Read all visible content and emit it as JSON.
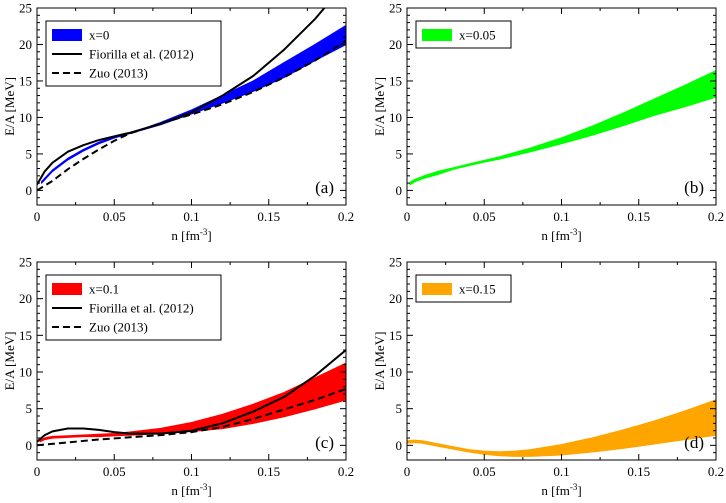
{
  "chart_data": [
    {
      "type": "area",
      "panel_label": "(a)",
      "xlabel": "n [fm",
      "xlabel_sup": "-3",
      "xlabel_end": "]",
      "ylabel": "E/A [MeV]",
      "xlim": [
        0,
        0.2
      ],
      "ylim": [
        -2,
        25
      ],
      "xticks": [
        "0",
        "0.05",
        "0.1",
        "0.15",
        "0.2"
      ],
      "yticks": [
        "0",
        "5",
        "10",
        "15",
        "20",
        "25"
      ],
      "xtick_values": [
        0,
        0.05,
        0.1,
        0.15,
        0.2
      ],
      "ytick_values": [
        0,
        5,
        10,
        15,
        20,
        25
      ],
      "band": {
        "name": "x=0",
        "color": "#0000ff",
        "x": [
          0.003,
          0.01,
          0.02,
          0.03,
          0.04,
          0.05,
          0.06,
          0.08,
          0.1,
          0.12,
          0.14,
          0.16,
          0.18,
          0.2
        ],
        "lower": [
          1.0,
          2.6,
          4.2,
          5.4,
          6.4,
          7.2,
          7.8,
          9.0,
          10.5,
          12.0,
          13.6,
          15.5,
          17.8,
          20.0
        ],
        "upper": [
          1.2,
          2.8,
          4.4,
          5.6,
          6.6,
          7.3,
          7.8,
          9.3,
          11.0,
          13.0,
          15.0,
          17.5,
          20.0,
          22.6
        ]
      },
      "lines": [
        {
          "name": "Fiorilla et al. (2012)",
          "style": "solid",
          "color": "#000000",
          "x": [
            0.0,
            0.005,
            0.01,
            0.02,
            0.03,
            0.04,
            0.05,
            0.06,
            0.08,
            0.1,
            0.12,
            0.14,
            0.16,
            0.18,
            0.186
          ],
          "y": [
            0.8,
            2.6,
            3.8,
            5.3,
            6.2,
            6.9,
            7.4,
            7.9,
            9.1,
            10.7,
            13.0,
            15.7,
            19.3,
            23.5,
            25.0
          ]
        },
        {
          "name": "Zuo (2013)",
          "style": "dashed",
          "color": "#000000",
          "x": [
            0.0,
            0.01,
            0.02,
            0.03,
            0.04,
            0.05,
            0.06,
            0.08,
            0.1,
            0.12,
            0.14,
            0.16,
            0.18,
            0.2
          ],
          "y": [
            0.0,
            1.3,
            2.9,
            4.3,
            5.6,
            6.8,
            7.8,
            9.2,
            10.4,
            11.8,
            13.5,
            15.5,
            17.8,
            20.5
          ]
        }
      ],
      "legend_position": "top-left"
    },
    {
      "type": "area",
      "panel_label": "(b)",
      "xlabel": "n [fm",
      "xlabel_sup": "-3",
      "xlabel_end": "]",
      "ylabel": "E/A [MeV]",
      "xlim": [
        0,
        0.2
      ],
      "ylim": [
        -2,
        25
      ],
      "xticks": [
        "0",
        "0.05",
        "0.1",
        "0.15",
        "0.2"
      ],
      "yticks": [
        "0",
        "5",
        "10",
        "15",
        "20",
        "25"
      ],
      "xtick_values": [
        0,
        0.05,
        0.1,
        0.15,
        0.2
      ],
      "ytick_values": [
        0,
        5,
        10,
        15,
        20,
        25
      ],
      "band": {
        "name": "x=0.05",
        "color": "#00ff00",
        "x": [
          0.002,
          0.005,
          0.01,
          0.02,
          0.03,
          0.04,
          0.05,
          0.06,
          0.08,
          0.1,
          0.12,
          0.14,
          0.16,
          0.18,
          0.2
        ],
        "lower": [
          0.8,
          1.2,
          1.6,
          2.2,
          2.9,
          3.4,
          3.9,
          4.3,
          5.3,
          6.4,
          7.6,
          8.9,
          10.3,
          11.5,
          12.8
        ],
        "upper": [
          1.1,
          1.5,
          1.9,
          2.6,
          3.1,
          3.6,
          4.1,
          4.6,
          5.8,
          7.2,
          8.8,
          10.6,
          12.5,
          14.4,
          16.4
        ]
      },
      "lines": [],
      "legend_position": "top-left"
    },
    {
      "type": "area",
      "panel_label": "(c)",
      "xlabel": "n [fm",
      "xlabel_sup": "-3",
      "xlabel_end": "]",
      "ylabel": "E/A [MeV]",
      "xlim": [
        0,
        0.2
      ],
      "ylim": [
        -2,
        25
      ],
      "xticks": [
        "0",
        "0.05",
        "0.1",
        "0.15",
        "0.2"
      ],
      "yticks": [
        "0",
        "5",
        "10",
        "15",
        "20",
        "25"
      ],
      "xtick_values": [
        0,
        0.05,
        0.1,
        0.15,
        0.2
      ],
      "ytick_values": [
        0,
        5,
        10,
        15,
        20,
        25
      ],
      "band": {
        "name": "x=0.1",
        "color": "#ff0000",
        "x": [
          0.002,
          0.005,
          0.01,
          0.02,
          0.03,
          0.04,
          0.05,
          0.06,
          0.08,
          0.1,
          0.12,
          0.14,
          0.16,
          0.18,
          0.2
        ],
        "lower": [
          0.5,
          0.8,
          1.0,
          1.1,
          1.2,
          1.2,
          1.3,
          1.4,
          1.6,
          1.9,
          2.3,
          3.0,
          3.9,
          5.0,
          6.2
        ],
        "upper": [
          0.7,
          1.0,
          1.2,
          1.3,
          1.4,
          1.5,
          1.6,
          1.8,
          2.3,
          3.1,
          4.2,
          5.6,
          7.2,
          9.2,
          11.2
        ]
      },
      "lines": [
        {
          "name": "Fiorilla et al. (2012)",
          "style": "solid",
          "color": "#000000",
          "x": [
            0.0,
            0.005,
            0.01,
            0.02,
            0.03,
            0.04,
            0.05,
            0.06,
            0.08,
            0.1,
            0.12,
            0.14,
            0.16,
            0.18,
            0.2
          ],
          "y": [
            0.5,
            1.4,
            1.9,
            2.3,
            2.3,
            2.1,
            1.8,
            1.6,
            1.6,
            2.0,
            3.0,
            4.6,
            6.6,
            9.5,
            13.0
          ]
        },
        {
          "name": "Zuo (2013)",
          "style": "dashed",
          "color": "#000000",
          "x": [
            0.0,
            0.02,
            0.04,
            0.06,
            0.08,
            0.1,
            0.12,
            0.14,
            0.16,
            0.18,
            0.2
          ],
          "y": [
            0.0,
            0.4,
            0.8,
            1.1,
            1.4,
            1.8,
            2.5,
            3.6,
            4.9,
            6.2,
            7.7
          ]
        }
      ],
      "legend_position": "top-left"
    },
    {
      "type": "area",
      "panel_label": "(d)",
      "xlabel": "n [fm",
      "xlabel_sup": "-3",
      "xlabel_end": "]",
      "ylabel": "E/A [MeV]",
      "xlim": [
        0,
        0.2
      ],
      "ylim": [
        -2,
        25
      ],
      "xticks": [
        "0",
        "0.05",
        "0.1",
        "0.15",
        "0.2"
      ],
      "yticks": [
        "0",
        "5",
        "10",
        "15",
        "20",
        "25"
      ],
      "xtick_values": [
        0,
        0.05,
        0.1,
        0.15,
        0.2
      ],
      "ytick_values": [
        0,
        5,
        10,
        15,
        20,
        25
      ],
      "band": {
        "name": "x=0.15",
        "color": "#ffa500",
        "x": [
          0.0,
          0.005,
          0.01,
          0.02,
          0.03,
          0.04,
          0.05,
          0.06,
          0.07,
          0.08,
          0.1,
          0.12,
          0.14,
          0.16,
          0.18,
          0.2
        ],
        "lower": [
          0.3,
          0.4,
          0.3,
          -0.1,
          -0.5,
          -0.9,
          -1.2,
          -1.4,
          -1.5,
          -1.5,
          -1.3,
          -0.9,
          -0.4,
          0.2,
          0.8,
          1.4
        ],
        "upper": [
          0.6,
          0.7,
          0.6,
          0.2,
          -0.2,
          -0.6,
          -0.8,
          -0.9,
          -0.8,
          -0.6,
          0.1,
          1.0,
          2.1,
          3.3,
          4.7,
          6.2
        ]
      },
      "lines": [],
      "legend_position": "top-left"
    }
  ]
}
